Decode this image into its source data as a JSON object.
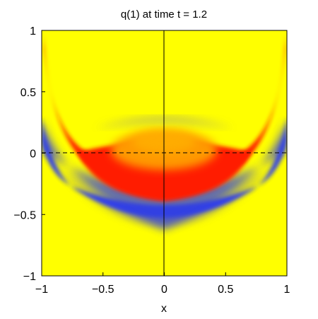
{
  "chart_data": {
    "type": "heatmap",
    "title": "q(1)   at time t = 1.2",
    "xlabel": "x",
    "ylabel": "",
    "xlim": [
      -1,
      1
    ],
    "ylim": [
      -1,
      1
    ],
    "xticks": [
      "−1",
      "−0.5",
      "0",
      "0.5",
      "1"
    ],
    "yticks": [
      "−1",
      "−0.5",
      "0",
      "0.5",
      "1"
    ],
    "xtick_values": [
      -1,
      -0.5,
      0,
      0.5,
      1
    ],
    "ytick_values": [
      -1,
      -0.5,
      0,
      0.5,
      1
    ],
    "grid": false,
    "colormap": [
      "#1a1aff",
      "#8080c8",
      "#ffff00",
      "#ff8000",
      "#ff0000"
    ],
    "features": [
      {
        "name": "outer red front",
        "center": [
          0,
          1.1
        ],
        "radius_x": 0.95,
        "radius_y": 1.02,
        "level": "high"
      },
      {
        "name": "blue trough",
        "center": [
          0,
          0.6
        ],
        "radius_x": 0.9,
        "radius_y": 0.8,
        "level": "low"
      },
      {
        "name": "inner red cap",
        "center": [
          0,
          0.0
        ],
        "x_range": [
          -0.7,
          0.7
        ],
        "y_range": [
          -0.3,
          0.05
        ],
        "level": "high"
      },
      {
        "name": "orange core",
        "center": [
          0,
          0.05
        ],
        "x_range": [
          -0.3,
          0.3
        ],
        "level": "mid-high"
      }
    ],
    "reference_lines": [
      {
        "orientation": "horizontal",
        "value": 0,
        "style": "dashed"
      },
      {
        "orientation": "vertical",
        "value": 0,
        "style": "solid"
      }
    ]
  }
}
